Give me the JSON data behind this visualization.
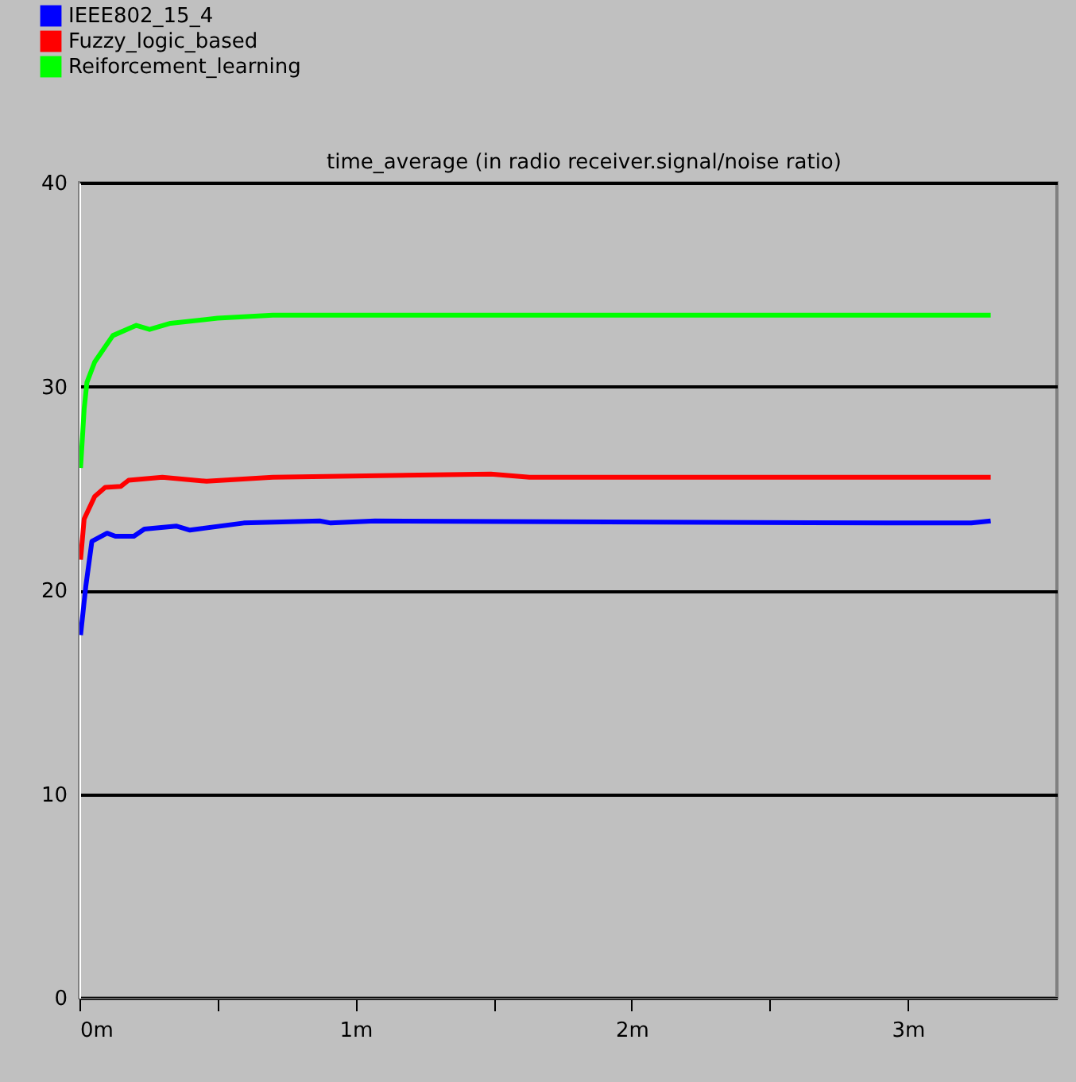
{
  "chart_data": {
    "type": "line",
    "title": "time_average (in radio receiver.signal/noise ratio)",
    "series": [
      {
        "name": "IEEE802_15_4",
        "color": "#0000ff",
        "x": [
          0.004,
          0.023,
          0.045,
          0.1,
          0.13,
          0.197,
          0.235,
          0.35,
          0.4,
          0.595,
          0.87,
          0.91,
          1.07,
          2.93,
          3.23,
          3.3
        ],
        "values": [
          17.8,
          20.2,
          22.4,
          22.8,
          22.65,
          22.65,
          23.0,
          23.15,
          22.95,
          23.3,
          23.4,
          23.3,
          23.4,
          23.3,
          23.3,
          23.4
        ]
      },
      {
        "name": "Fuzzy_logic_based",
        "color": "#ff0000",
        "x": [
          0.004,
          0.017,
          0.055,
          0.093,
          0.15,
          0.178,
          0.3,
          0.46,
          0.7,
          1.49,
          1.63,
          3.3
        ],
        "values": [
          21.5,
          23.5,
          24.6,
          25.05,
          25.1,
          25.4,
          25.55,
          25.35,
          25.55,
          25.7,
          25.55,
          25.55
        ]
      },
      {
        "name": "Reiforcement_learning",
        "color": "#00ff00",
        "x": [
          0.004,
          0.017,
          0.027,
          0.055,
          0.121,
          0.206,
          0.254,
          0.33,
          0.5,
          0.7,
          3.3
        ],
        "values": [
          26.0,
          28.9,
          30.2,
          31.2,
          32.5,
          33.0,
          32.8,
          33.1,
          33.35,
          33.5,
          33.5
        ]
      }
    ],
    "xlim": [
      0,
      3.54
    ],
    "ylim": [
      0,
      40
    ],
    "xticks": [
      {
        "value": 0,
        "label": "0m"
      },
      {
        "value": 0.5,
        "label": null
      },
      {
        "value": 1,
        "label": "1m"
      },
      {
        "value": 1.5,
        "label": null
      },
      {
        "value": 2,
        "label": "2m"
      },
      {
        "value": 2.5,
        "label": null
      },
      {
        "value": 3,
        "label": "3m"
      }
    ],
    "yticks": [
      0,
      10,
      20,
      30,
      40
    ],
    "grid": "y",
    "legend": "top left"
  }
}
